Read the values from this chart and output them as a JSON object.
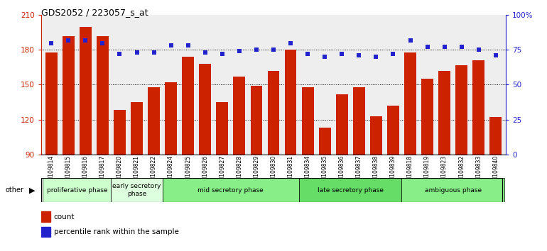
{
  "title": "GDS2052 / 223057_s_at",
  "samples": [
    "GSM109814",
    "GSM109815",
    "GSM109816",
    "GSM109817",
    "GSM109820",
    "GSM109821",
    "GSM109822",
    "GSM109824",
    "GSM109825",
    "GSM109826",
    "GSM109827",
    "GSM109828",
    "GSM109829",
    "GSM109830",
    "GSM109831",
    "GSM109834",
    "GSM109835",
    "GSM109836",
    "GSM109837",
    "GSM109838",
    "GSM109839",
    "GSM109818",
    "GSM109819",
    "GSM109823",
    "GSM109832",
    "GSM109833",
    "GSM109840"
  ],
  "counts": [
    178,
    192,
    200,
    192,
    128,
    135,
    148,
    152,
    174,
    168,
    135,
    157,
    149,
    162,
    180,
    148,
    113,
    142,
    148,
    123,
    132,
    178,
    155,
    162,
    167,
    171,
    122
  ],
  "percentile_ranks": [
    80,
    82,
    82,
    80,
    72,
    73,
    73,
    78,
    78,
    73,
    72,
    74,
    75,
    75,
    80,
    72,
    70,
    72,
    71,
    70,
    72,
    82,
    77,
    77,
    77,
    75,
    71
  ],
  "bar_color": "#cc2200",
  "dot_color": "#2222cc",
  "ylim_left": [
    90,
    210
  ],
  "ylim_right": [
    0,
    100
  ],
  "yticks_left": [
    90,
    120,
    150,
    180,
    210
  ],
  "yticks_right": [
    0,
    25,
    50,
    75,
    100
  ],
  "ytick_labels_left": [
    "90",
    "120",
    "150",
    "180",
    "210"
  ],
  "ytick_labels_right": [
    "0",
    "25",
    "50",
    "75",
    "100%"
  ],
  "grid_values": [
    120,
    150,
    180
  ],
  "phase_groups": [
    {
      "label": "proliferative phase",
      "start": 0,
      "end": 3,
      "color": "#ccffcc"
    },
    {
      "label": "early secretory\nphase",
      "start": 4,
      "end": 6,
      "color": "#ddffdd"
    },
    {
      "label": "mid secretory phase",
      "start": 7,
      "end": 14,
      "color": "#88ee88"
    },
    {
      "label": "late secretory phase",
      "start": 15,
      "end": 20,
      "color": "#66dd66"
    },
    {
      "label": "ambiguous phase",
      "start": 21,
      "end": 26,
      "color": "#88ee88"
    }
  ],
  "other_label": "other",
  "legend_count_label": "count",
  "legend_percentile_label": "percentile rank within the sample"
}
